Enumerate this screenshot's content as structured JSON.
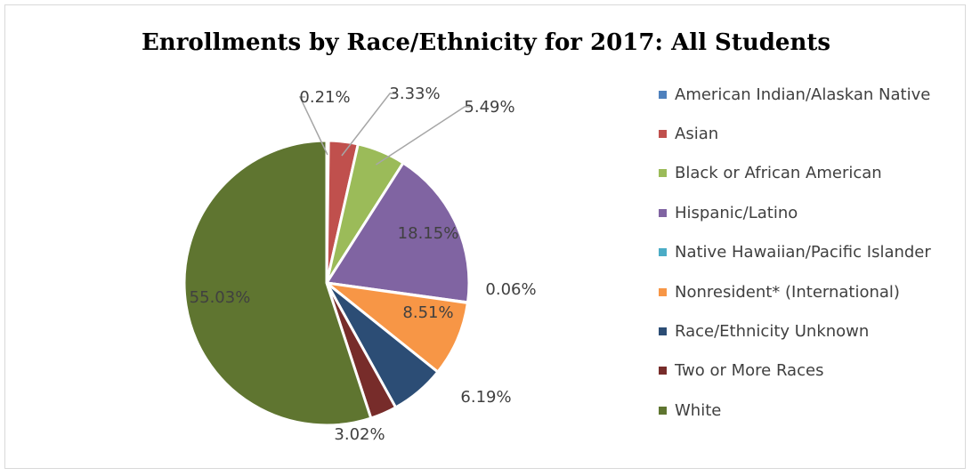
{
  "chart_data": {
    "type": "pie",
    "title": "Enrollments by Race/Ethnicity for 2017: All Students",
    "legend_position": "right",
    "slices": [
      {
        "name": "American Indian/Alaskan Native",
        "value": 0.21,
        "label": "0.21%",
        "color": "#4F81BD"
      },
      {
        "name": "Asian",
        "value": 3.33,
        "label": "3.33%",
        "color": "#C0504D"
      },
      {
        "name": "Black or African American",
        "value": 5.49,
        "label": "5.49%",
        "color": "#9BBB59"
      },
      {
        "name": "Hispanic/Latino",
        "value": 18.15,
        "label": "18.15%",
        "color": "#8064A2"
      },
      {
        "name": "Native Hawaiian/Pacific Islander",
        "value": 0.06,
        "label": "0.06%",
        "color": "#4BACC6"
      },
      {
        "name": "Nonresident* (International)",
        "value": 8.51,
        "label": "8.51%",
        "color": "#F79646"
      },
      {
        "name": "Race/Ethnicity Unknown",
        "value": 6.19,
        "label": "6.19%",
        "color": "#2C4D75"
      },
      {
        "name": "Two or More Races",
        "value": 3.02,
        "label": "3.02%",
        "color": "#772C2A"
      },
      {
        "name": "White",
        "value": 55.03,
        "label": "55.03%",
        "color": "#5F7530"
      }
    ]
  }
}
